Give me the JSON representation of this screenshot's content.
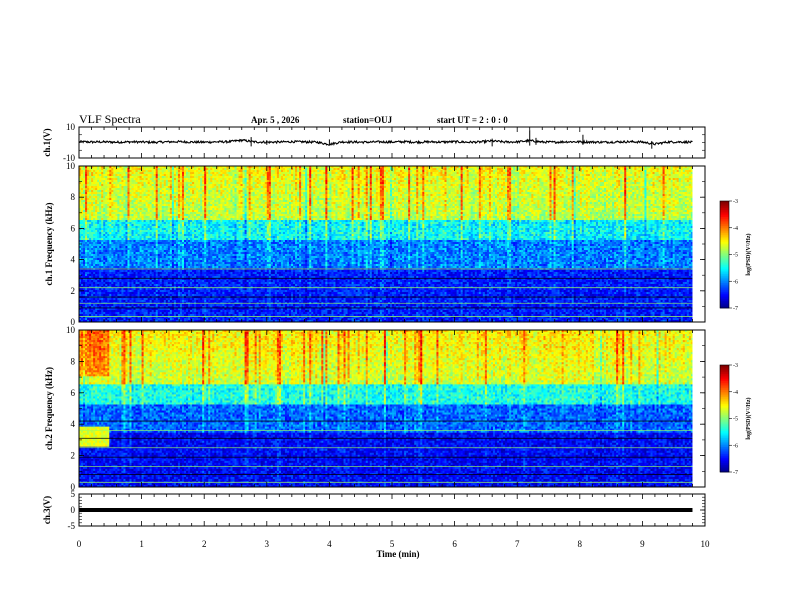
{
  "header": {
    "title": "VLF Spectra",
    "date": "Apr. 5  , 2026",
    "station": "station=OUJ",
    "start": "start  UT  =   2  : 0  : 0"
  },
  "chart_data": [
    {
      "type": "line",
      "name": "ch1-waveform",
      "ylabel": "ch.1(V)",
      "ylim": [
        -10,
        10
      ],
      "yticks": [
        "10",
        "-10"
      ],
      "x": [
        0,
        0.2,
        0.4,
        0.6,
        0.8,
        1,
        1.2,
        1.4,
        1.6,
        1.8,
        2,
        2.2,
        2.4,
        2.6,
        2.8,
        3,
        3.2,
        3.4,
        3.6,
        3.8,
        4,
        4.2,
        4.4,
        4.6,
        4.8,
        5,
        5.2,
        5.4,
        5.6,
        5.8,
        6,
        6.2,
        6.4,
        6.6,
        6.8,
        7,
        7.2,
        7.4,
        7.6,
        7.8,
        8,
        8.2,
        8.4,
        8.6,
        8.8,
        9,
        9.2,
        9.4,
        9.6,
        9.8
      ],
      "y": [
        0.5,
        0.3,
        0.4,
        0.2,
        0.4,
        0.3,
        0.1,
        0.4,
        0.5,
        0.3,
        0.2,
        0.4,
        0.5,
        1.5,
        0.4,
        0.2,
        0.3,
        0.5,
        0.4,
        0.2,
        -1.2,
        0.4,
        0.3,
        0.2,
        0.4,
        0.3,
        0.5,
        0.2,
        0.4,
        0.3,
        0.5,
        0.2,
        0.3,
        1.0,
        0.3,
        0.4,
        1.2,
        0.3,
        0.2,
        0.5,
        0.4,
        0.3,
        0.2,
        0.4,
        0.5,
        0.3,
        -1.0,
        0.3,
        0.4,
        0.2
      ],
      "spikes": [
        {
          "x": 2.75,
          "max": 3.5,
          "min": -2.5
        },
        {
          "x": 3.0,
          "max": 1.5,
          "min": -1.5
        },
        {
          "x": 4.0,
          "max": 2.0,
          "min": -1.8
        },
        {
          "x": 6.6,
          "max": 2.5,
          "min": -2.5
        },
        {
          "x": 7.2,
          "max": 8.0,
          "min": -2.0
        },
        {
          "x": 7.3,
          "max": 3.0,
          "min": -1.5
        },
        {
          "x": 8.05,
          "max": 5.0,
          "min": -1.5
        },
        {
          "x": 9.15,
          "max": 1.0,
          "min": -4.0
        }
      ]
    },
    {
      "type": "heatmap",
      "name": "ch1-spectrogram",
      "ylabel": "ch.1  Frequency  (kHz)",
      "ylim": [
        0,
        10
      ],
      "yticks": [
        "0",
        "2",
        "4",
        "6",
        "8",
        "10"
      ],
      "zlim": [
        -7,
        -3
      ],
      "colorbar_label": "log(PSD)(V²/Hz)",
      "colorbar_ticks": [
        "-3",
        "-4",
        "-5",
        "-6",
        "-7"
      ],
      "hf_level": -4.8,
      "lf_level": -6.4,
      "noise_lines_khz": [
        0.35,
        0.9,
        1.2,
        1.6,
        2.2,
        2.8,
        3.4
      ]
    },
    {
      "type": "heatmap",
      "name": "ch2-spectrogram",
      "ylabel": "ch.2  Frequency  (kHz)",
      "ylim": [
        0,
        10
      ],
      "yticks": [
        "0",
        "2",
        "4",
        "6",
        "8",
        "10"
      ],
      "zlim": [
        -7,
        -3
      ],
      "colorbar_label": "log(PSD)(V²/Hz)",
      "colorbar_ticks": [
        "-3",
        "-4",
        "-5",
        "-6",
        "-7"
      ],
      "hf_level": -4.7,
      "lf_level": -6.5,
      "noise_lines_khz": [
        0.3,
        0.8,
        1.3,
        1.9,
        2.5,
        3.1,
        3.6,
        4.2
      ]
    },
    {
      "type": "line",
      "name": "ch3-waveform",
      "ylabel": "ch.3(V)",
      "ylim": [
        -5,
        5
      ],
      "yticks": [
        "5",
        "0",
        "-5"
      ],
      "x": [
        0,
        9.8
      ],
      "y": [
        0,
        0
      ]
    }
  ],
  "xaxis": {
    "label": "Time  (min)",
    "xlim": [
      0,
      10
    ],
    "ticks": [
      "0",
      "1",
      "2",
      "3",
      "4",
      "5",
      "6",
      "7",
      "8",
      "9",
      "10"
    ]
  }
}
